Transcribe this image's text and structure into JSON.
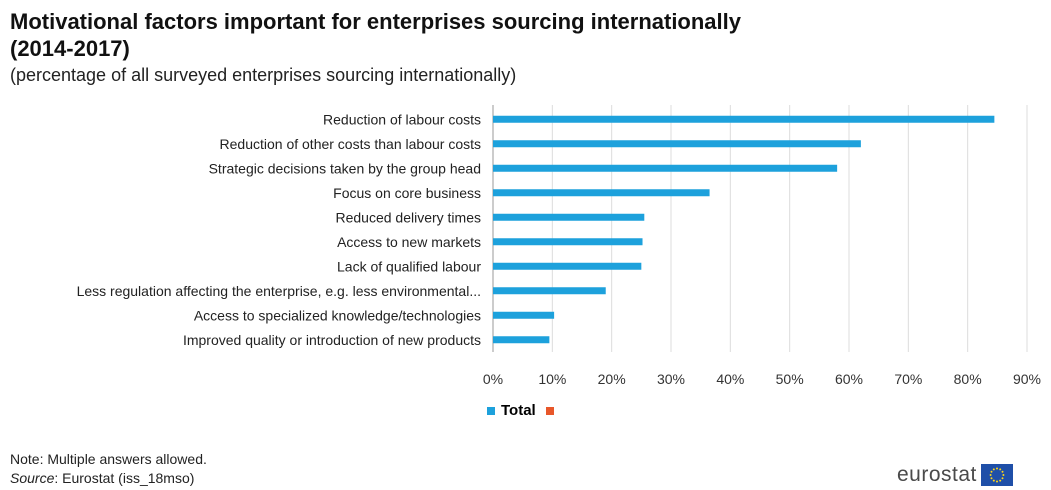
{
  "header": {
    "title": "Motivational factors important for enterprises sourcing internationally (2014-2017)",
    "subtitle": "(percentage of all surveyed enterprises sourcing internationally)"
  },
  "chart_data": {
    "type": "bar",
    "orientation": "horizontal",
    "categories": [
      "Reduction of labour costs",
      "Reduction of other costs than labour costs",
      "Strategic decisions taken by the group head",
      "Focus on core business",
      "Reduced delivery times",
      "Access to new markets",
      "Lack of qualified labour",
      "Less regulation affecting the enterprise, e.g. less environmental...",
      "Access to specialized knowledge/technologies",
      "Improved quality or introduction of new products"
    ],
    "series": [
      {
        "name": "Total",
        "color": "#1da1dc",
        "values": [
          84.5,
          62,
          58,
          36.5,
          25.5,
          25.2,
          25,
          19,
          10.3,
          9.5
        ]
      }
    ],
    "xlim": [
      0,
      90
    ],
    "xticks": [
      "0%",
      "10%",
      "20%",
      "30%",
      "40%",
      "50%",
      "60%",
      "70%",
      "80%",
      "90%"
    ],
    "xlabel": "",
    "ylabel": "",
    "grid": "vertical",
    "legend": {
      "position": "bottom",
      "entries": [
        {
          "label": "Total",
          "color": "#1da1dc"
        },
        {
          "label": "",
          "color": "#e8572a"
        }
      ]
    }
  },
  "footer": {
    "note": "Note: Multiple answers allowed.",
    "source_label": "Source",
    "source_text": ": Eurostat (iss_18mso)",
    "logo": "eurostat",
    "logo_icon": "eu-flag-icon"
  }
}
